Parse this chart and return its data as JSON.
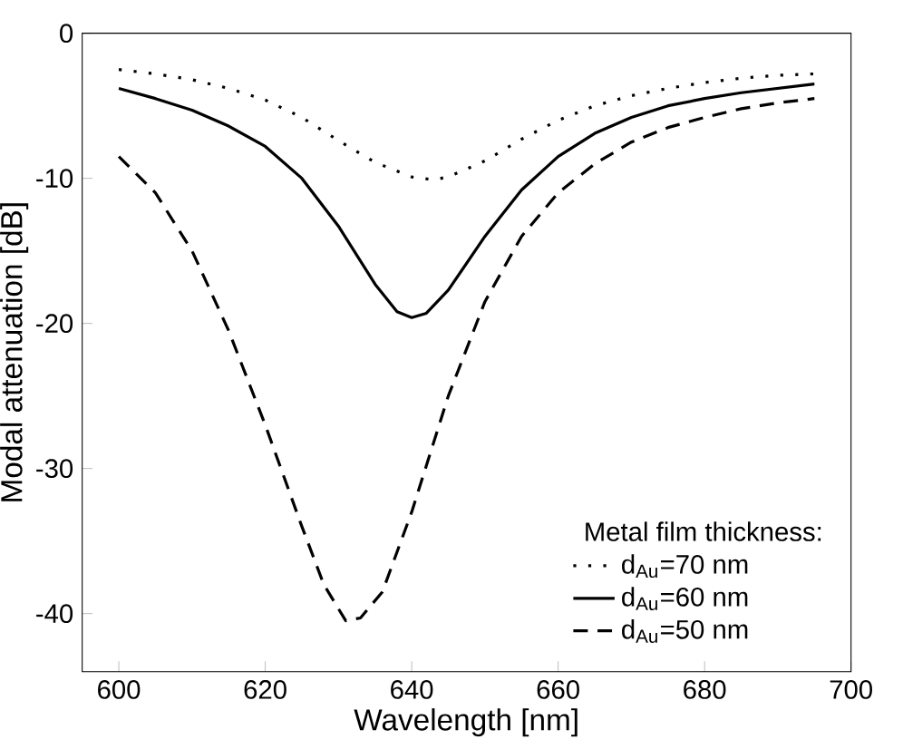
{
  "chart_data": {
    "type": "line",
    "xlabel": "Wavelength [nm]",
    "ylabel": "Modal attenuation [dB]",
    "legend_title": "Metal film thickness:",
    "xlim": [
      595,
      700
    ],
    "ylim": [
      -44,
      0
    ],
    "xticks": [
      600,
      620,
      640,
      660,
      680,
      700
    ],
    "yticks": [
      -40,
      -30,
      -20,
      -10,
      0
    ],
    "grid": false,
    "legend": "bottom right",
    "marker": "none",
    "series": [
      {
        "name": "d$_{Au}$=70 nm",
        "color": "#000000",
        "line_style": "dotted",
        "x": [
          600,
          605,
          610,
          615,
          620,
          625,
          630,
          635,
          640,
          643,
          645,
          650,
          655,
          660,
          665,
          670,
          675,
          680,
          685,
          690,
          695
        ],
        "values": [
          -2.5,
          -2.8,
          -3.2,
          -3.8,
          -4.6,
          -5.8,
          -7.4,
          -8.9,
          -9.9,
          -10.1,
          -9.9,
          -8.8,
          -7.3,
          -6.0,
          -5.0,
          -4.3,
          -3.8,
          -3.4,
          -3.1,
          -2.9,
          -2.8
        ]
      },
      {
        "name": "d$_{Au}$=60 nm",
        "color": "#000000",
        "line_style": "solid",
        "x": [
          600,
          605,
          610,
          615,
          620,
          625,
          630,
          635,
          638,
          640,
          642,
          645,
          650,
          655,
          660,
          665,
          670,
          675,
          680,
          685,
          690,
          695
        ],
        "values": [
          -3.8,
          -4.5,
          -5.3,
          -6.4,
          -7.8,
          -10,
          -13.3,
          -17.3,
          -19.2,
          -19.6,
          -19.3,
          -17.7,
          -14,
          -10.8,
          -8.5,
          -6.9,
          -5.8,
          -5.0,
          -4.5,
          -4.1,
          -3.8,
          -3.5
        ]
      },
      {
        "name": "d$_{Au}$=50 nm",
        "color": "#000000",
        "line_style": "dashed",
        "x": [
          600,
          605,
          610,
          615,
          620,
          625,
          628,
          631,
          633,
          636,
          640,
          645,
          650,
          655,
          660,
          665,
          670,
          675,
          680,
          685,
          690,
          695
        ],
        "values": [
          -8.5,
          -11,
          -15,
          -20.5,
          -27,
          -34,
          -38,
          -40.5,
          -40.3,
          -38.5,
          -33,
          -25,
          -18.5,
          -14,
          -11,
          -9,
          -7.5,
          -6.5,
          -5.8,
          -5.2,
          -4.8,
          -4.5
        ]
      }
    ]
  }
}
